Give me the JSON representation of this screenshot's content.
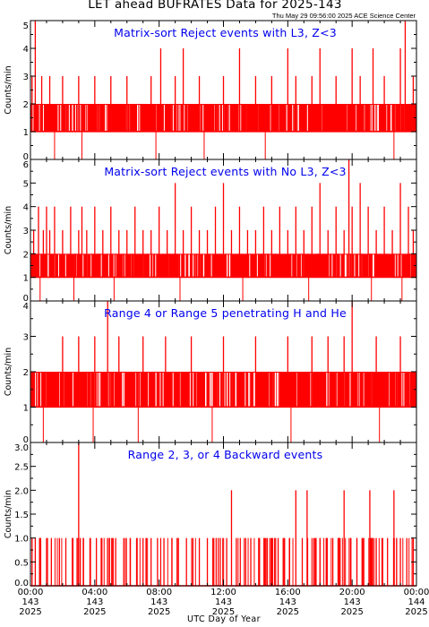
{
  "title": "LET ahead BUFRATES Data for 2025-143",
  "timestamp": "Thu May 29 09:56:00 2025 ACE Science Center",
  "x_axis_label": "UTC Day of Year",
  "x_ticks": [
    {
      "time": "00:00",
      "doy": "143",
      "year": "2025"
    },
    {
      "time": "04:00",
      "doy": "143",
      "year": "2025"
    },
    {
      "time": "08:00",
      "doy": "143",
      "year": "2025"
    },
    {
      "time": "12:00",
      "doy": "143",
      "year": "2025"
    },
    {
      "time": "16:00",
      "doy": "143",
      "year": "2025"
    },
    {
      "time": "20:00",
      "doy": "143",
      "year": "2025"
    },
    {
      "time": "00:00",
      "doy": "144",
      "year": "2025"
    }
  ],
  "colors": {
    "data": "#ff0000",
    "panel_title": "#0000ee",
    "axes": "#000000"
  },
  "chart_data": [
    {
      "type": "line",
      "title": "Matrix-sort Reject events with L3, Z<3",
      "ylabel": "Counts/min",
      "xlim": [
        0,
        24
      ],
      "ylim": [
        0,
        5
      ],
      "yticks": [
        "0",
        "1",
        "2",
        "3",
        "4",
        "5"
      ],
      "step": true,
      "series": [
        {
          "baseline": 1,
          "x": [
            0.1,
            0.3,
            0.5,
            0.7,
            0.9,
            1.2,
            1.4,
            1.6,
            2.0,
            2.5,
            3.0,
            3.5,
            4.0,
            4.2,
            4.5,
            5.0,
            5.5,
            6.0,
            6.5,
            7.0,
            7.5,
            8.0,
            8.1,
            8.5,
            9.0,
            9.5,
            10.0,
            10.5,
            11.0,
            11.5,
            12.0,
            12.5,
            13.0,
            13.5,
            14.0,
            14.5,
            15.0,
            15.5,
            16.0,
            16.2,
            16.5,
            17.0,
            17.5,
            18.0,
            18.5,
            19.0,
            19.5,
            20.0,
            20.2,
            20.5,
            21.0,
            21.3,
            21.5,
            22.0,
            22.5,
            23.0,
            23.3,
            23.5,
            23.8
          ],
          "y": [
            3,
            5,
            2,
            3,
            2,
            3,
            2,
            2,
            3,
            2,
            3,
            2,
            3,
            2,
            2,
            3,
            2,
            3,
            2,
            2,
            3,
            2,
            4,
            2,
            3,
            4,
            2,
            3,
            2,
            2,
            3,
            2,
            4,
            2,
            3,
            2,
            3,
            2,
            4,
            2,
            3,
            2,
            3,
            4,
            2,
            3,
            2,
            4,
            2,
            3,
            2,
            4,
            2,
            3,
            2,
            4,
            5,
            2,
            3
          ],
          "dips": [
            1.5,
            3.2,
            7.8,
            10.8,
            14.6,
            22.6
          ]
        }
      ]
    },
    {
      "type": "line",
      "title": "Matrix-sort Reject events with No L3, Z<3",
      "ylabel": "Counts/min",
      "xlim": [
        0,
        24
      ],
      "ylim": [
        0,
        6
      ],
      "yticks": [
        "0",
        "1",
        "2",
        "3",
        "4",
        "5",
        "6"
      ],
      "step": true,
      "series": [
        {
          "baseline": 1,
          "x": [
            0.2,
            0.5,
            0.8,
            1.0,
            1.2,
            1.5,
            2.0,
            2.5,
            3.0,
            3.2,
            3.5,
            4.0,
            4.5,
            5.0,
            5.5,
            6.0,
            6.5,
            7.0,
            7.5,
            8.0,
            8.5,
            9.0,
            9.5,
            10.0,
            10.5,
            11.0,
            11.5,
            12.0,
            12.5,
            13.0,
            13.5,
            14.0,
            14.5,
            15.0,
            15.5,
            16.0,
            16.5,
            17.0,
            17.5,
            18.0,
            18.5,
            19.0,
            19.5,
            19.8,
            20.0,
            20.5,
            21.0,
            21.5,
            22.0,
            22.5,
            23.0,
            23.5,
            23.8
          ],
          "y": [
            3,
            4,
            3,
            4,
            3,
            4,
            3,
            4,
            3,
            4,
            3,
            4,
            3,
            4,
            3,
            3,
            4,
            3,
            3,
            4,
            3,
            5,
            3,
            4,
            3,
            3,
            4,
            5,
            3,
            4,
            3,
            3,
            4,
            3,
            4,
            3,
            4,
            3,
            4,
            5,
            3,
            4,
            3,
            6,
            4,
            5,
            4,
            3,
            4,
            3,
            5,
            4,
            3
          ],
          "dips": [
            0.6,
            2.7,
            5.2,
            9.3,
            13.2,
            17.3,
            21.2,
            23.1
          ]
        }
      ]
    },
    {
      "type": "line",
      "title": "Range 4 or Range 5 penetrating H and He",
      "ylabel": "Counts/min",
      "xlim": [
        0,
        24
      ],
      "ylim": [
        0,
        4
      ],
      "yticks": [
        "0",
        "1",
        "2",
        "3",
        "4"
      ],
      "step": true,
      "series": [
        {
          "baseline": 1,
          "x": [
            0.1,
            0.5,
            1.0,
            1.5,
            2.0,
            2.4,
            2.8,
            3.0,
            3.3,
            3.6,
            4.0,
            4.5,
            4.8,
            5.0,
            5.5,
            6.0,
            6.5,
            7.0,
            7.5,
            8.0,
            8.4,
            9.0,
            9.5,
            10.0,
            10.5,
            11.0,
            11.5,
            12.0,
            12.5,
            13.0,
            13.5,
            14.0,
            14.5,
            15.0,
            15.5,
            16.0,
            16.5,
            17.0,
            17.5,
            18.0,
            18.3,
            18.5,
            19.0,
            19.5,
            20.0,
            20.5,
            21.0,
            21.5,
            22.0,
            22.5,
            23.0,
            23.5,
            23.9
          ],
          "y": [
            2,
            2,
            2,
            2,
            3,
            2,
            2,
            3,
            2,
            2,
            3,
            2,
            4,
            2,
            3,
            2,
            2,
            3,
            2,
            2,
            3,
            2,
            2,
            3,
            2,
            2,
            2,
            3,
            2,
            2,
            2,
            3,
            2,
            2,
            2,
            3,
            2,
            2,
            3,
            2,
            2,
            3,
            2,
            3,
            4,
            2,
            2,
            3,
            2,
            2,
            3,
            2,
            2
          ],
          "dips": [
            0.8,
            3.9,
            6.7,
            11.3,
            16.2,
            21.7
          ]
        }
      ]
    },
    {
      "type": "line",
      "title": "Range 2, 3, or 4 Backward events",
      "ylabel": "Counts/min",
      "xlim": [
        0,
        24
      ],
      "ylim": [
        0,
        3
      ],
      "yticks": [
        "0.0",
        "0.5",
        "1.0",
        "1.5",
        "2.0",
        "2.5",
        "3.0"
      ],
      "step": true,
      "series": [
        {
          "baseline": 0,
          "x": [
            0.1,
            0.3,
            0.6,
            1.0,
            1.3,
            1.8,
            2.2,
            2.6,
            2.9,
            3.0,
            3.1,
            3.3,
            3.7,
            4.1,
            4.4,
            4.9,
            5.3,
            5.8,
            6.2,
            6.6,
            7.0,
            7.5,
            7.9,
            8.3,
            8.8,
            9.2,
            9.7,
            10.1,
            10.5,
            11.0,
            11.4,
            11.8,
            12.2,
            12.5,
            12.8,
            13.3,
            13.7,
            14.2,
            14.6,
            15.0,
            15.4,
            15.8,
            16.1,
            16.5,
            16.9,
            17.2,
            17.6,
            18.0,
            18.4,
            18.8,
            19.2,
            19.5,
            19.9,
            20.3,
            20.7,
            21.1,
            21.5,
            21.9,
            22.2,
            22.6,
            23.0,
            23.4,
            23.8
          ],
          "y": [
            1,
            1,
            1,
            1,
            1,
            1,
            1,
            1,
            1,
            3,
            1,
            1,
            1,
            1,
            1,
            1,
            1,
            1,
            1,
            1,
            1,
            1,
            1,
            1,
            1,
            1,
            1,
            1,
            1,
            1,
            1,
            1,
            1,
            2,
            1,
            1,
            1,
            1,
            1,
            1,
            1,
            1,
            1,
            2,
            1,
            2,
            1,
            1,
            1,
            1,
            1,
            2,
            1,
            1,
            1,
            2,
            1,
            1,
            1,
            2,
            1,
            1,
            1
          ]
        }
      ]
    }
  ]
}
